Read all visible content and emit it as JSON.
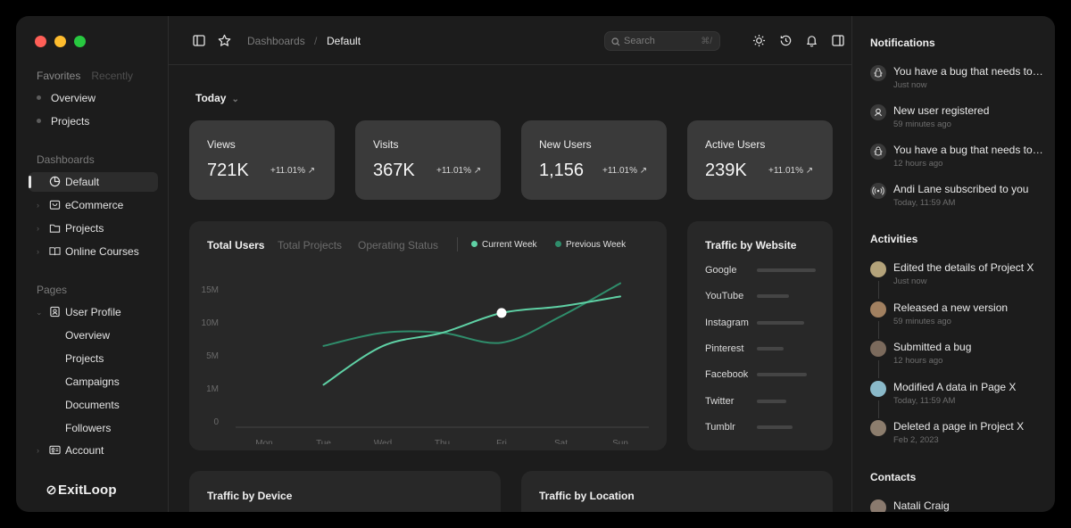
{
  "sidebar": {
    "tabs": [
      "Favorites",
      "Recently"
    ],
    "favorites": [
      "Overview",
      "Projects"
    ],
    "dashboards_title": "Dashboards",
    "dashboards": [
      "Default",
      "eCommerce",
      "Projects",
      "Online Courses"
    ],
    "pages_title": "Pages",
    "user_profile": "User Profile",
    "user_profile_items": [
      "Overview",
      "Projects",
      "Campaigns",
      "Documents",
      "Followers"
    ],
    "account": "Account",
    "brand": "ExitLoop"
  },
  "topbar": {
    "breadcrumb_parent": "Dashboards",
    "breadcrumb_sep": "/",
    "breadcrumb_current": "Default",
    "search_placeholder": "Search",
    "search_shortcut": "⌘/"
  },
  "main": {
    "period": "Today",
    "stats": [
      {
        "label": "Views",
        "value": "721K",
        "change": "+11.01%"
      },
      {
        "label": "Visits",
        "value": "367K",
        "change": "+11.01%"
      },
      {
        "label": "New Users",
        "value": "1,156",
        "change": "+11.01%"
      },
      {
        "label": "Active Users",
        "value": "239K",
        "change": "+11.01%"
      }
    ],
    "chart_tabs": [
      "Total Users",
      "Total Projects",
      "Operating Status"
    ],
    "traffic_website_title": "Traffic by Website",
    "websites": [
      {
        "name": "Google",
        "share": 1.0
      },
      {
        "name": "YouTube",
        "share": 0.55
      },
      {
        "name": "Instagram",
        "share": 0.8
      },
      {
        "name": "Pinterest",
        "share": 0.45
      },
      {
        "name": "Facebook",
        "share": 0.85
      },
      {
        "name": "Twitter",
        "share": 0.5
      },
      {
        "name": "Tumblr",
        "share": 0.6
      }
    ],
    "traffic_device_title": "Traffic by Device",
    "traffic_location_title": "Traffic by Location"
  },
  "chart_data": {
    "type": "line",
    "categories": [
      "Mon",
      "Tue",
      "Wed",
      "Thu",
      "Fri",
      "Sat",
      "Sun"
    ],
    "yticks": [
      "15M",
      "10M",
      "5M",
      "1M",
      "0"
    ],
    "series": [
      {
        "name": "Current Week",
        "color": "#5fd1a5",
        "values": [
          null,
          1.5,
          6.5,
          8.5,
          11.5,
          12.5,
          14.0
        ]
      },
      {
        "name": "Previous Week",
        "color": "#2f8d6b",
        "values": [
          null,
          6.5,
          8.5,
          8.5,
          7.0,
          11.0,
          16.0
        ]
      }
    ],
    "highlight": {
      "x": "Fri",
      "y": 11.5
    }
  },
  "right": {
    "notifications_title": "Notifications",
    "notifications": [
      {
        "text": "You have a bug that needs to be fixed",
        "time": "Just now",
        "icon": "bug-icon"
      },
      {
        "text": "New user registered",
        "time": "59 minutes ago",
        "icon": "user-icon"
      },
      {
        "text": "You have a bug that needs to be fixed",
        "time": "12 hours ago",
        "icon": "bug-icon"
      },
      {
        "text": "Andi Lane subscribed to you",
        "time": "Today, 11:59 AM",
        "icon": "broadcast-icon"
      }
    ],
    "activities_title": "Activities",
    "activities": [
      {
        "text": "Edited the details of Project X",
        "time": "Just now",
        "color": "#b4a37a"
      },
      {
        "text": "Released a new version",
        "time": "59 minutes ago",
        "color": "#a18060"
      },
      {
        "text": "Submitted a bug",
        "time": "12 hours ago",
        "color": "#7b6a5c"
      },
      {
        "text": "Modified A data in Page X",
        "time": "Today, 11:59 AM",
        "color": "#8ab9c9"
      },
      {
        "text": "Deleted a page in Project X",
        "time": "Feb 2, 2023",
        "color": "#8c7d6d"
      }
    ],
    "contacts_title": "Contacts",
    "contacts": [
      "Natali Craig"
    ]
  }
}
